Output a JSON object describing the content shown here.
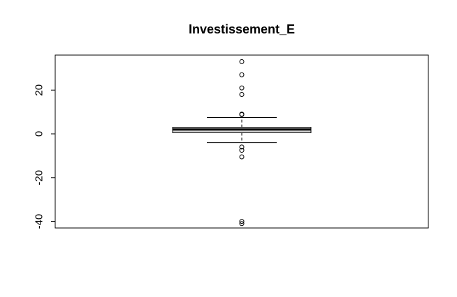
{
  "chart_data": {
    "type": "boxplot",
    "title": "Investissement_E",
    "xlabel": "",
    "ylabel": "",
    "ylim": [
      -43,
      36
    ],
    "yticks": [
      -40,
      -20,
      0,
      20
    ],
    "grid": false,
    "box": {
      "q1": 0.5,
      "median": 2,
      "q3": 3,
      "whisker_low": -4,
      "whisker_high": 7.5,
      "outliers": [
        33,
        27,
        21,
        18,
        9,
        8.8,
        -6,
        -7.5,
        -10.5,
        -40,
        -41
      ]
    },
    "colors": {
      "box_fill": "#d3d3d3",
      "stroke": "#000000"
    }
  }
}
